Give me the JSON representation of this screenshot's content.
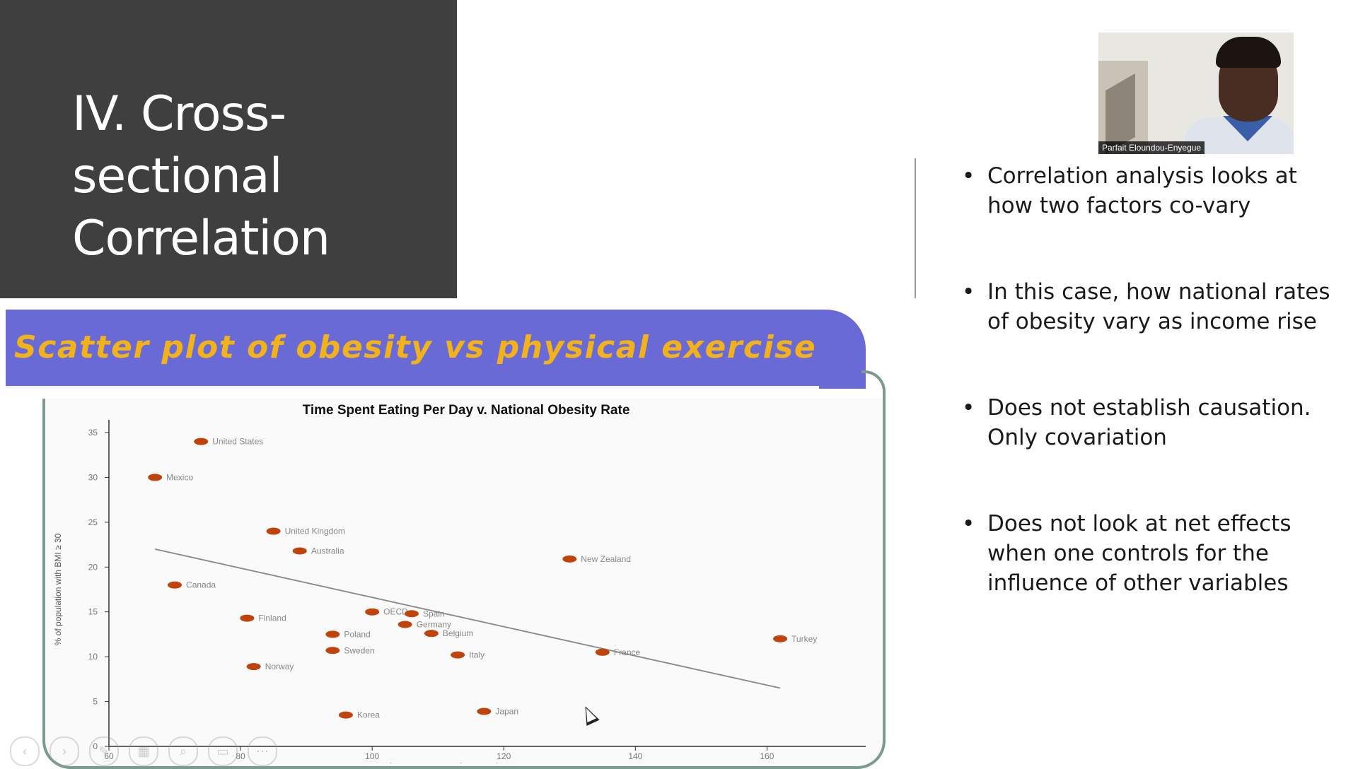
{
  "slide": {
    "title": "IV. Cross-sectional Correlation",
    "bullets": [
      "Correlation analysis looks at how two factors co-vary",
      "In this case, how national rates of obesity vary as income rise",
      "Does not establish causation. Only covariation",
      "Does not look at net effects when one controls  for the influence of other variables"
    ],
    "bullet_glyph": "•"
  },
  "video": {
    "participant_name": "Parfait Eloundou-Enyegue"
  },
  "figure": {
    "banner": "Scatter plot of obesity vs physical exercise",
    "banner_color": "#6a6ad6",
    "banner_text_color": "#f2b21c"
  },
  "chart_data": {
    "type": "scatter",
    "title": "Time Spent Eating Per Day v. National Obesity Rate",
    "xlabel": "minutes spent eating per day",
    "ylabel": "% of population with BMI ≥ 30",
    "xlim": [
      60,
      175
    ],
    "ylim": [
      0,
      35
    ],
    "xticks": [
      60,
      80,
      100,
      120,
      140,
      160
    ],
    "yticks": [
      0,
      5,
      10,
      15,
      20,
      25,
      30,
      35
    ],
    "grid": false,
    "point_color": "#c0430c",
    "trendline": {
      "x": [
        67,
        162
      ],
      "y": [
        22,
        6.5
      ]
    },
    "points": [
      {
        "label": "United States",
        "x": 74,
        "y": 34
      },
      {
        "label": "Mexico",
        "x": 67,
        "y": 30
      },
      {
        "label": "United Kingdom",
        "x": 85,
        "y": 24
      },
      {
        "label": "Australia",
        "x": 89,
        "y": 21.8
      },
      {
        "label": "New Zealand",
        "x": 130,
        "y": 20.9
      },
      {
        "label": "Canada",
        "x": 70,
        "y": 18
      },
      {
        "label": "Finland",
        "x": 81,
        "y": 14.3
      },
      {
        "label": "Poland",
        "x": 94,
        "y": 12.5
      },
      {
        "label": "Sweden",
        "x": 94,
        "y": 10.7
      },
      {
        "label": "Norway",
        "x": 82,
        "y": 8.9
      },
      {
        "label": "Korea",
        "x": 96,
        "y": 3.5
      },
      {
        "label": "Japan",
        "x": 117,
        "y": 3.9
      },
      {
        "label": "Italy",
        "x": 113,
        "y": 10.2
      },
      {
        "label": "France",
        "x": 135,
        "y": 10.5
      },
      {
        "label": "Turkey",
        "x": 162,
        "y": 12
      },
      {
        "label": "Germany",
        "x": 105,
        "y": 13.6
      },
      {
        "label": "Belgium",
        "x": 109,
        "y": 12.6
      },
      {
        "label": "OECD",
        "x": 100,
        "y": 15
      },
      {
        "label": "Spain",
        "x": 106,
        "y": 14.8
      }
    ]
  },
  "player_controls": [
    "previous",
    "next",
    "pen",
    "slides",
    "zoom",
    "subtitles",
    "more"
  ]
}
